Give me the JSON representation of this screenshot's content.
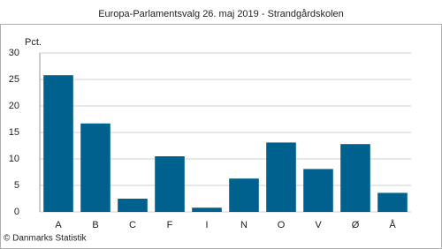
{
  "chart_data": {
    "type": "bar",
    "title": "Europa-Parlamentsvalg 26. maj 2019 - Strandgårdskolen",
    "y_label": "Pct.",
    "source": "© Danmarks Statistik",
    "categories": [
      "A",
      "B",
      "C",
      "F",
      "I",
      "N",
      "O",
      "V",
      "Ø",
      "Å"
    ],
    "values": [
      25.8,
      16.7,
      2.5,
      10.5,
      0.8,
      6.3,
      13.1,
      8.1,
      12.8,
      3.6
    ],
    "color": "#00618f",
    "ylim": [
      0,
      30
    ],
    "yticks": [
      0,
      5,
      10,
      15,
      20,
      25,
      30
    ],
    "grid": true
  }
}
